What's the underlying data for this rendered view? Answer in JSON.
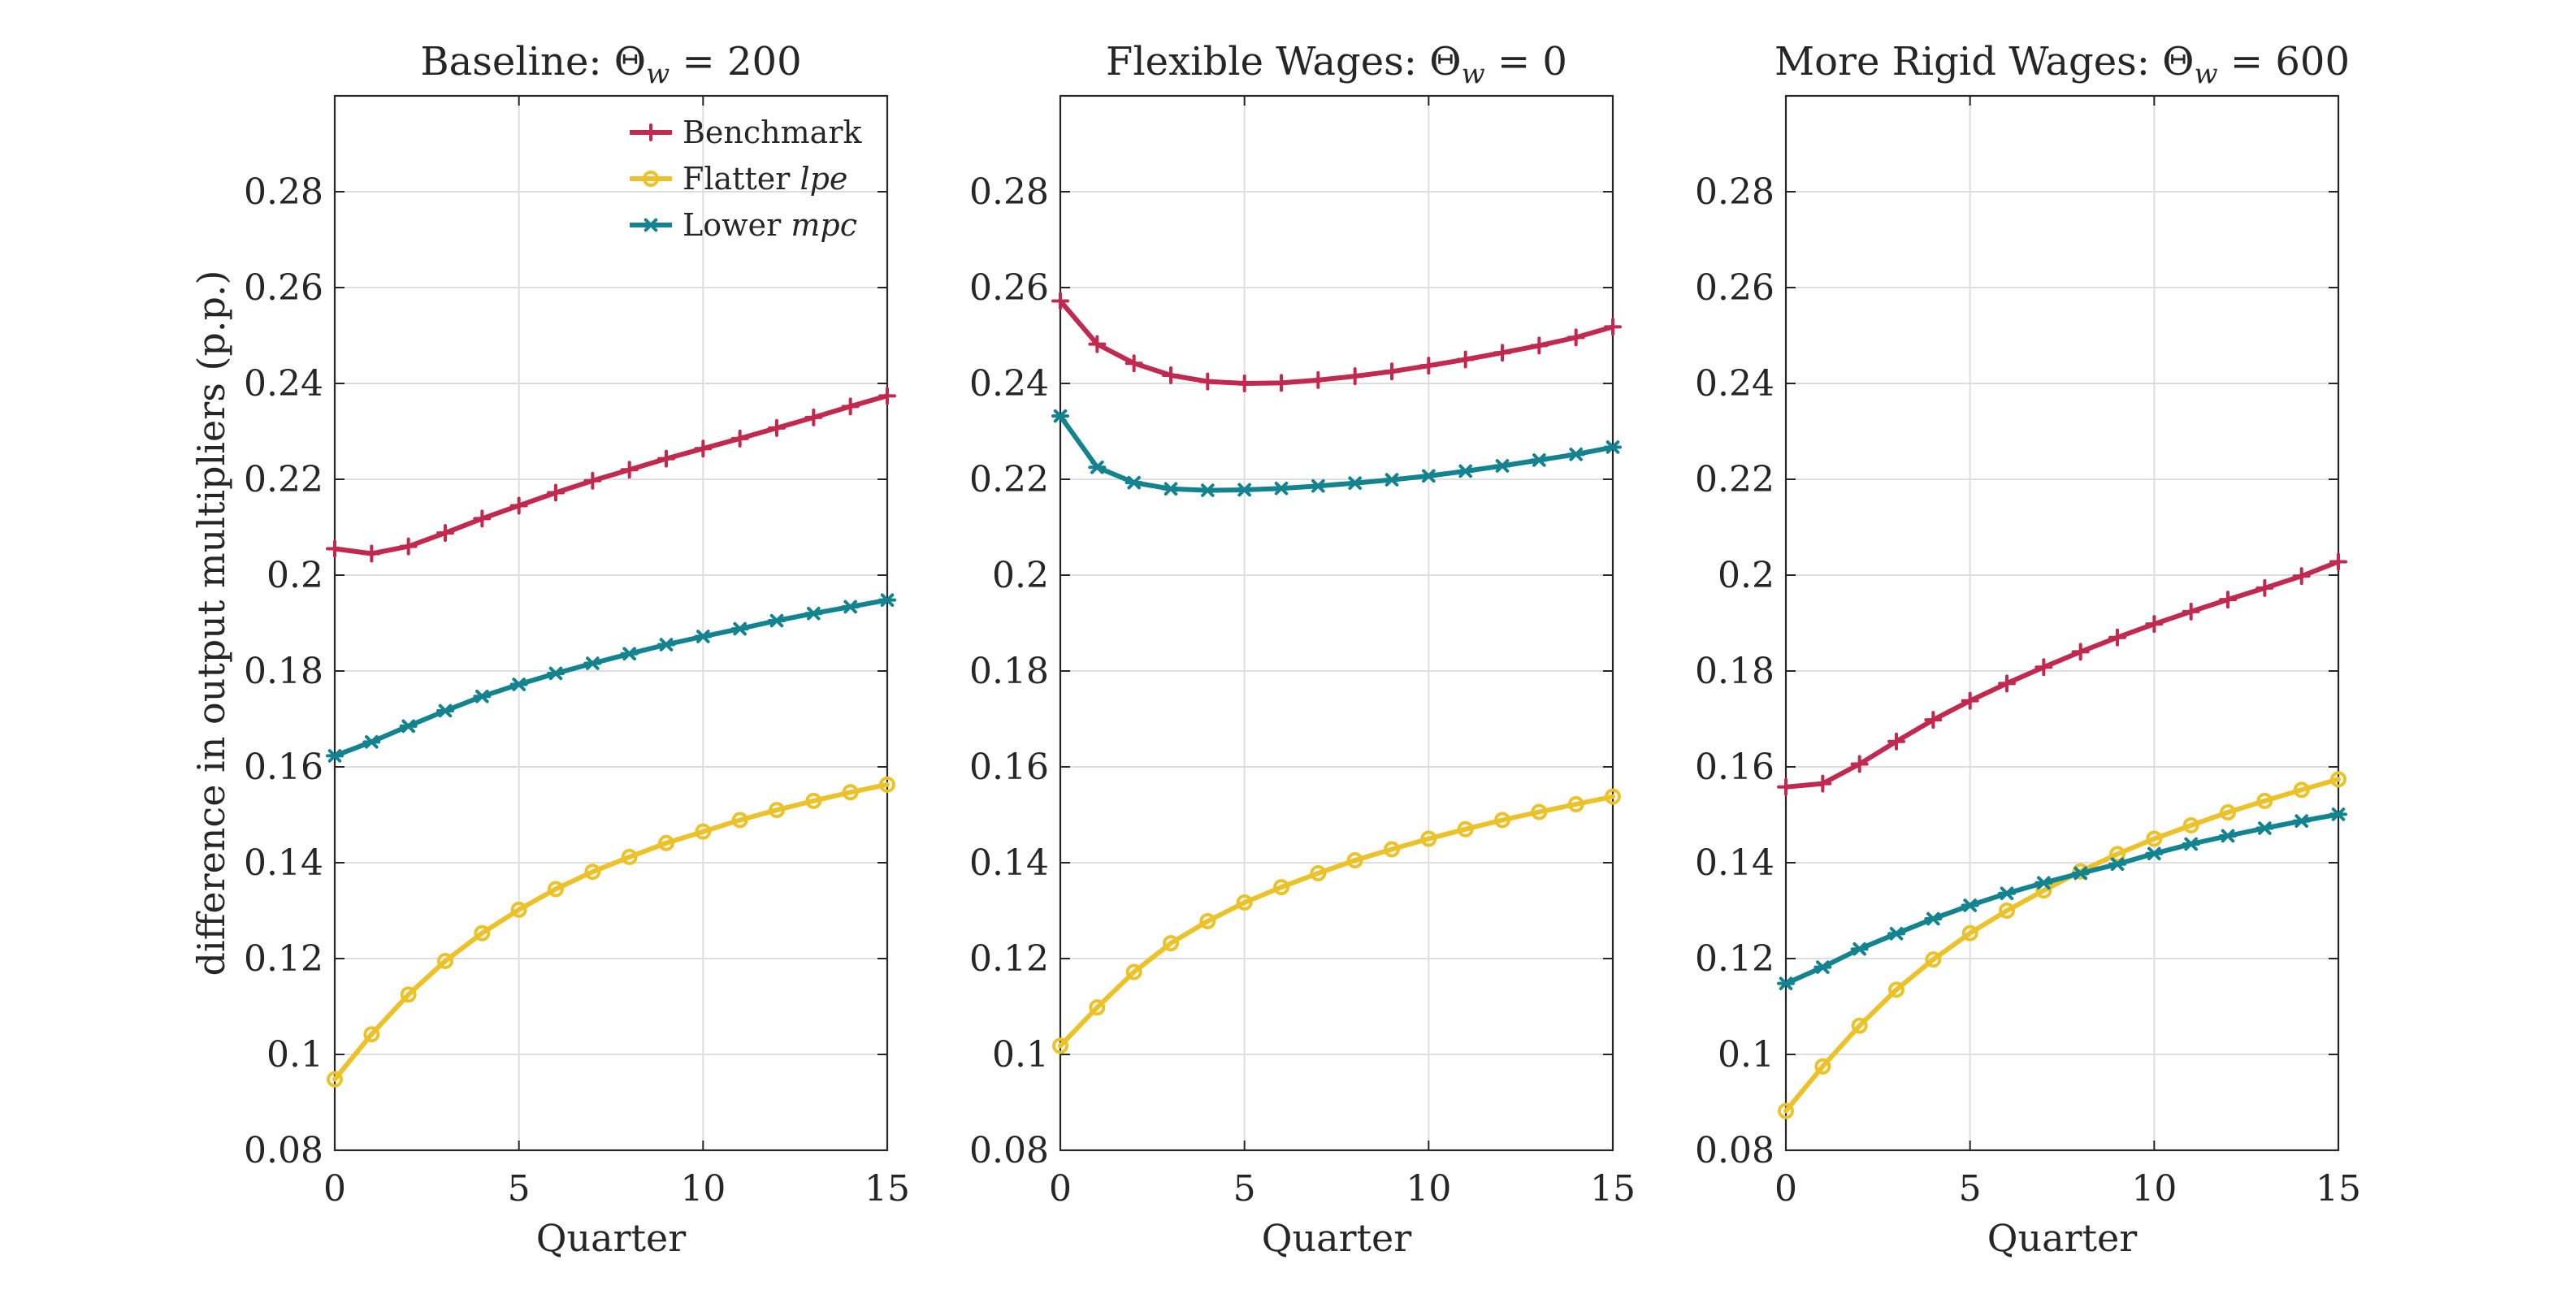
{
  "chart_data": [
    {
      "type": "line",
      "title": "Baseline: Θ_w = 200",
      "title_parts": {
        "text": "Baseline: ",
        "sym": "Θ",
        "sub": "w",
        "rest": " = 200"
      },
      "xlabel": "Quarter",
      "ylabel": "difference in output multipliers (p.p.)",
      "xlim": [
        0,
        15
      ],
      "ylim": [
        0.08,
        0.3
      ],
      "xticks": [
        0,
        5,
        10,
        15
      ],
      "yticks": [
        0.08,
        0.1,
        0.12,
        0.14,
        0.16,
        0.18,
        0.2,
        0.22,
        0.24,
        0.26,
        0.28
      ],
      "ytick_labels": [
        "0.08",
        "0.1",
        "0.12",
        "0.14",
        "0.16",
        "0.18",
        "0.2",
        "0.22",
        "0.24",
        "0.26",
        "0.28"
      ],
      "grid": true,
      "legend": true,
      "legend_position": "top-right",
      "x": [
        0,
        1,
        2,
        3,
        4,
        5,
        6,
        7,
        8,
        9,
        10,
        11,
        12,
        13,
        14,
        15
      ],
      "series": [
        {
          "name": "Benchmark",
          "name_parts": [
            "Benchmark",
            ""
          ],
          "color": "#c1294f",
          "marker": "plus",
          "values": [
            0.2055,
            0.2045,
            0.206,
            0.2088,
            0.2118,
            0.2145,
            0.2172,
            0.2197,
            0.222,
            0.2243,
            0.2264,
            0.2285,
            0.2307,
            0.2329,
            0.2352,
            0.2374
          ]
        },
        {
          "name": "Flatter lpe",
          "name_parts": [
            "Flatter ",
            "lpe"
          ],
          "color": "#ecc22a",
          "marker": "circle",
          "values": [
            0.0948,
            0.1042,
            0.1125,
            0.1195,
            0.1253,
            0.1302,
            0.1345,
            0.1381,
            0.1412,
            0.1441,
            0.1465,
            0.1489,
            0.151,
            0.1529,
            0.1547,
            0.1563
          ]
        },
        {
          "name": "Lower mpc",
          "name_parts": [
            "Lower ",
            "mpc"
          ],
          "color": "#13848f",
          "marker": "star",
          "values": [
            0.1623,
            0.1652,
            0.1685,
            0.1717,
            0.1747,
            0.1772,
            0.1795,
            0.1816,
            0.1836,
            0.1855,
            0.1872,
            0.1888,
            0.1905,
            0.192,
            0.1934,
            0.1948
          ]
        }
      ]
    },
    {
      "type": "line",
      "title": "Flexible Wages: Θ_w = 0",
      "title_parts": {
        "text": "Flexible Wages: ",
        "sym": "Θ",
        "sub": "w",
        "rest": " = 0"
      },
      "xlabel": "Quarter",
      "ylabel": "",
      "xlim": [
        0,
        15
      ],
      "ylim": [
        0.08,
        0.3
      ],
      "xticks": [
        0,
        5,
        10,
        15
      ],
      "yticks": [
        0.08,
        0.1,
        0.12,
        0.14,
        0.16,
        0.18,
        0.2,
        0.22,
        0.24,
        0.26,
        0.28
      ],
      "ytick_labels": [
        "0.08",
        "0.1",
        "0.12",
        "0.14",
        "0.16",
        "0.18",
        "0.2",
        "0.22",
        "0.24",
        "0.26",
        "0.28"
      ],
      "grid": true,
      "legend": false,
      "x": [
        0,
        1,
        2,
        3,
        4,
        5,
        6,
        7,
        8,
        9,
        10,
        11,
        12,
        13,
        14,
        15
      ],
      "series": [
        {
          "color": "#c1294f",
          "marker": "plus",
          "values": [
            0.2572,
            0.2482,
            0.2442,
            0.2417,
            0.2404,
            0.24,
            0.2401,
            0.2407,
            0.2415,
            0.2425,
            0.2437,
            0.245,
            0.2464,
            0.2479,
            0.2496,
            0.2518
          ]
        },
        {
          "color": "#ecc22a",
          "marker": "circle",
          "values": [
            0.1018,
            0.1098,
            0.1172,
            0.1232,
            0.1278,
            0.1317,
            0.1349,
            0.1378,
            0.1405,
            0.1428,
            0.145,
            0.147,
            0.1489,
            0.1506,
            0.1522,
            0.1538
          ]
        },
        {
          "color": "#13848f",
          "marker": "star",
          "values": [
            0.2332,
            0.2225,
            0.2193,
            0.218,
            0.2177,
            0.2178,
            0.2181,
            0.2186,
            0.2192,
            0.2199,
            0.2207,
            0.2217,
            0.2228,
            0.224,
            0.2252,
            0.2267
          ]
        }
      ]
    },
    {
      "type": "line",
      "title": "More Rigid Wages: Θ_w = 600",
      "title_parts": {
        "text": "More Rigid Wages: ",
        "sym": "Θ",
        "sub": "w",
        "rest": " = 600"
      },
      "xlabel": "Quarter",
      "ylabel": "",
      "xlim": [
        0,
        15
      ],
      "ylim": [
        0.08,
        0.3
      ],
      "xticks": [
        0,
        5,
        10,
        15
      ],
      "yticks": [
        0.08,
        0.1,
        0.12,
        0.14,
        0.16,
        0.18,
        0.2,
        0.22,
        0.24,
        0.26,
        0.28
      ],
      "ytick_labels": [
        "0.08",
        "0.1",
        "0.12",
        "0.14",
        "0.16",
        "0.18",
        "0.2",
        "0.22",
        "0.24",
        "0.26",
        "0.28"
      ],
      "grid": true,
      "legend": false,
      "x": [
        0,
        1,
        2,
        3,
        4,
        5,
        6,
        7,
        8,
        9,
        10,
        11,
        12,
        13,
        14,
        15
      ],
      "series": [
        {
          "color": "#c1294f",
          "marker": "plus",
          "values": [
            0.1558,
            0.1565,
            0.1606,
            0.1653,
            0.1698,
            0.1738,
            0.1774,
            0.1808,
            0.184,
            0.187,
            0.1898,
            0.1924,
            0.1949,
            0.1973,
            0.1998,
            0.2028
          ]
        },
        {
          "color": "#ecc22a",
          "marker": "circle",
          "values": [
            0.0882,
            0.0975,
            0.106,
            0.1135,
            0.1198,
            0.1253,
            0.13,
            0.1342,
            0.1382,
            0.1418,
            0.145,
            0.1478,
            0.1505,
            0.1529,
            0.1552,
            0.1574
          ]
        },
        {
          "color": "#13848f",
          "marker": "star",
          "values": [
            0.1148,
            0.1182,
            0.122,
            0.1252,
            0.1283,
            0.1311,
            0.1336,
            0.1358,
            0.1378,
            0.1397,
            0.1419,
            0.1439,
            0.1456,
            0.1472,
            0.1487,
            0.1501
          ]
        }
      ]
    }
  ]
}
